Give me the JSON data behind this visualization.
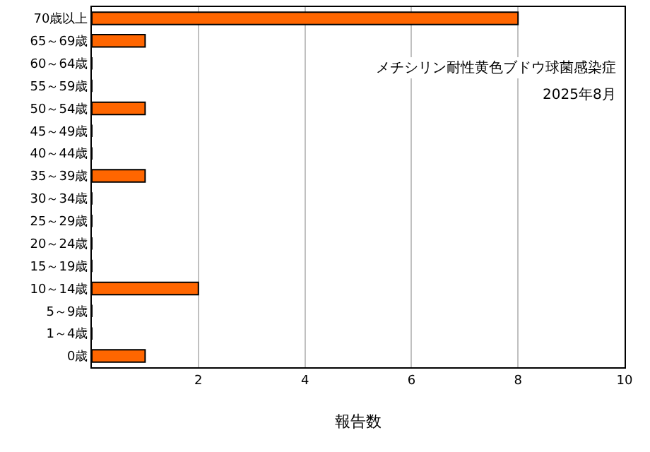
{
  "chart_data": {
    "type": "bar",
    "orientation": "horizontal",
    "title": "メチシリン耐性黄色ブドウ球菌感染症",
    "subtitle": "2025年8月",
    "xlabel": "報告数",
    "categories": [
      "70歳以上",
      "65～69歳",
      "60～64歳",
      "55～59歳",
      "50～54歳",
      "45～49歳",
      "40～44歳",
      "35～39歳",
      "30～34歳",
      "25～29歳",
      "20～24歳",
      "15～19歳",
      "10～14歳",
      "5～9歳",
      "1～4歳",
      "0歳"
    ],
    "values": [
      8,
      1,
      0,
      0,
      1,
      0,
      0,
      1,
      0,
      0,
      0,
      0,
      2,
      0,
      0,
      1
    ],
    "color": "#ff6600",
    "xlim": [
      0,
      10
    ],
    "xticks": [
      {
        "value": 0,
        "label": null
      },
      2,
      4,
      6,
      8,
      10
    ],
    "grid": "x",
    "legend": false
  }
}
